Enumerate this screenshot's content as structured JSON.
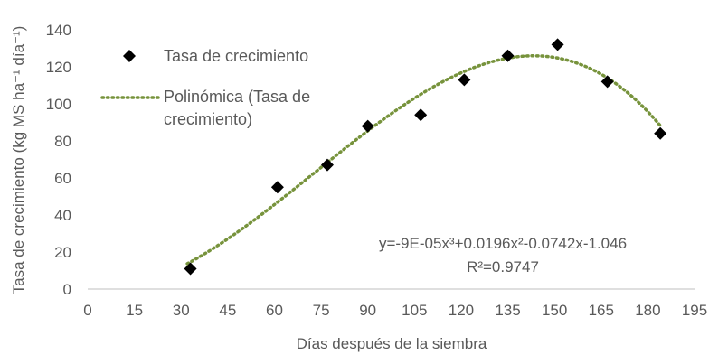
{
  "chart_data": {
    "type": "scatter",
    "title": "",
    "xlabel": "Días después de la siembra",
    "ylabel": "Tasa de crecimiento (kg MS ha⁻¹ día⁻¹)",
    "xlim": [
      0,
      195
    ],
    "ylim": [
      0,
      140
    ],
    "xticks": [
      0,
      15,
      30,
      45,
      60,
      75,
      90,
      105,
      120,
      135,
      150,
      165,
      180,
      195
    ],
    "yticks": [
      0,
      20,
      40,
      60,
      80,
      100,
      120,
      140
    ],
    "grid": false,
    "legend_position": "top-left",
    "series": [
      {
        "name": "Tasa de crecimiento",
        "marker": "diamond",
        "color": "#000000",
        "x": [
          33,
          61,
          77,
          90,
          107,
          121,
          135,
          151,
          167,
          184
        ],
        "y": [
          11,
          55,
          67,
          88,
          94,
          113,
          126,
          132,
          112,
          84
        ]
      }
    ],
    "trendline": {
      "name": "Polinómica (Tasa de crecimiento)",
      "legend_lines": [
        "Polinómica (Tasa de",
        "crecimiento)"
      ],
      "style": "dotted",
      "color": "#77933C",
      "x_range": [
        32,
        184
      ],
      "coefficients": [
        -1.046,
        -0.0742,
        0.0196,
        -9e-05
      ],
      "equation": "y=-9E-05x³+0.0196x²-0.0742x-1.046",
      "r_squared": "R²=0.9747"
    }
  }
}
